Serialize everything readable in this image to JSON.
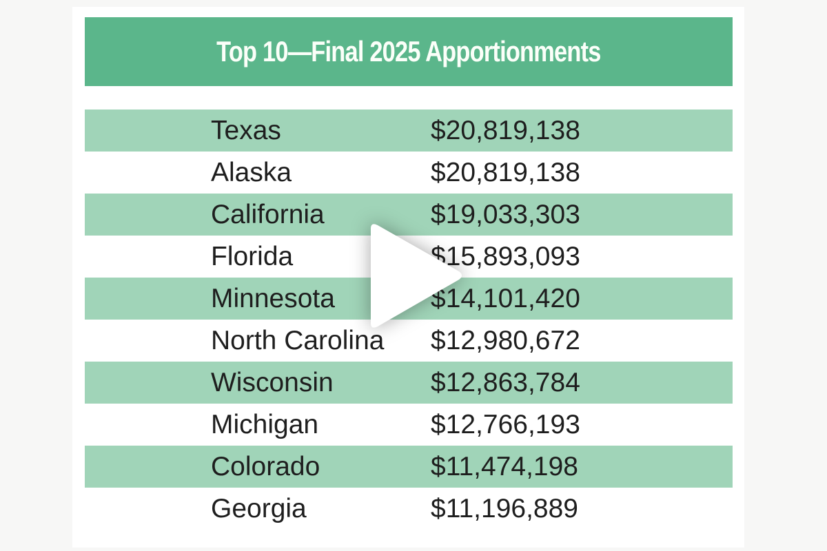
{
  "title": "Top 10—Final 2025 Apportionments",
  "rows": [
    {
      "state": "Texas",
      "amount": "$20,819,138"
    },
    {
      "state": "Alaska",
      "amount": "$20,819,138"
    },
    {
      "state": "California",
      "amount": "$19,033,303"
    },
    {
      "state": "Florida",
      "amount": "$15,893,093"
    },
    {
      "state": "Minnesota",
      "amount": "$14,101,420"
    },
    {
      "state": "North Carolina",
      "amount": "$12,980,672"
    },
    {
      "state": "Wisconsin",
      "amount": "$12,863,784"
    },
    {
      "state": "Michigan",
      "amount": "$12,766,193"
    },
    {
      "state": "Colorado",
      "amount": "$11,474,198"
    },
    {
      "state": "Georgia",
      "amount": "$11,196,889"
    }
  ],
  "colors": {
    "header": "#5bb68b",
    "stripe": "#a0d4b8"
  },
  "overlay_icon": "play-icon"
}
